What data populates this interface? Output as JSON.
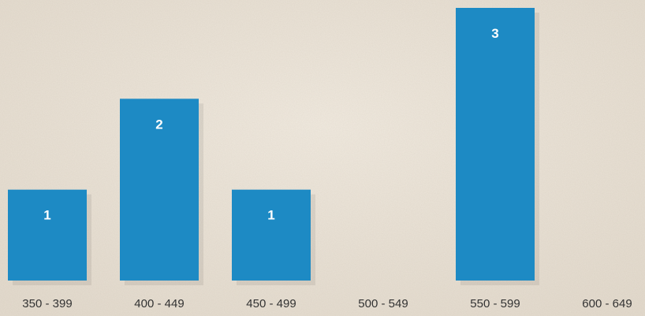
{
  "colors": {
    "background": "#eee7dc",
    "bar": "#1d8ac4",
    "bar_label": "#ffffff",
    "tick_label": "#333333"
  },
  "chart_data": {
    "type": "bar",
    "categories": [
      "350 - 399",
      "400 - 449",
      "450 - 499",
      "500 - 549",
      "550 - 599",
      "600 - 649"
    ],
    "values": [
      1,
      2,
      1,
      0,
      3,
      0
    ],
    "value_labels": [
      "1",
      "2",
      "1",
      "",
      "3",
      ""
    ],
    "title": "",
    "xlabel": "",
    "ylabel": "",
    "ylim": [
      0,
      3
    ],
    "grid": false,
    "legend": "none"
  }
}
